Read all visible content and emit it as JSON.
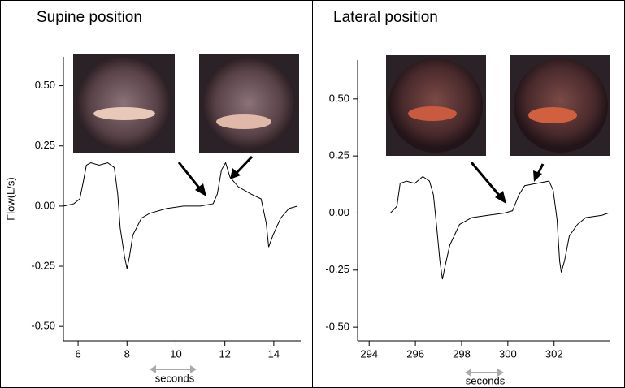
{
  "chart_data": [
    {
      "type": "line",
      "title": "Supine position",
      "ylabel": "Flow(L/s)",
      "xlabel": "seconds",
      "x": [
        5.41,
        5.83,
        6.07,
        6.21,
        6.34,
        6.52,
        6.86,
        7.21,
        7.48,
        7.62,
        7.72,
        7.9,
        8.0,
        8.1,
        8.24,
        8.59,
        8.93,
        9.62,
        10.31,
        11.0,
        11.52,
        11.69,
        11.86,
        12.03,
        12.21,
        12.55,
        13.07,
        13.48,
        13.69,
        13.79,
        13.97,
        14.28,
        14.62,
        14.97
      ],
      "values": [
        0,
        0.01,
        0.03,
        0.1,
        0.17,
        0.18,
        0.17,
        0.18,
        0.16,
        0.05,
        -0.09,
        -0.21,
        -0.26,
        -0.21,
        -0.12,
        -0.05,
        -0.03,
        -0.01,
        0,
        0,
        0.01,
        0.05,
        0.15,
        0.18,
        0.12,
        0.08,
        0.05,
        0.03,
        -0.07,
        -0.17,
        -0.12,
        -0.05,
        -0.01,
        0
      ],
      "color": "#000000",
      "xlim": [
        5.4,
        15.1
      ],
      "xticks": [
        6,
        8,
        10,
        12,
        14
      ],
      "ylim": [
        -0.56,
        0.62
      ],
      "yticks": [
        {
          "value": -0.5,
          "label": "-0.50"
        },
        -0.25,
        {
          "value": 0,
          "label": "0.00"
        },
        0.25,
        {
          "value": 0.5,
          "label": "0.50"
        }
      ]
    },
    {
      "type": "line",
      "title": "Lateral position",
      "xlabel": "seconds",
      "x": [
        293.75,
        294.92,
        295.2,
        295.34,
        295.62,
        295.97,
        296.32,
        296.61,
        296.78,
        296.92,
        297.06,
        297.17,
        297.31,
        297.49,
        297.91,
        298.44,
        299.14,
        299.85,
        300.2,
        300.48,
        300.73,
        301.25,
        301.78,
        301.96,
        302.13,
        302.24,
        302.31,
        302.45,
        302.66,
        303.01,
        303.37,
        304.07,
        304.35
      ],
      "values": [
        0,
        0,
        0.03,
        0.13,
        0.14,
        0.13,
        0.16,
        0.14,
        0.08,
        -0.06,
        -0.21,
        -0.29,
        -0.22,
        -0.14,
        -0.05,
        -0.02,
        -0.01,
        0,
        0.01,
        0.08,
        0.12,
        0.13,
        0.14,
        0.1,
        -0.03,
        -0.21,
        -0.26,
        -0.21,
        -0.1,
        -0.05,
        -0.02,
        -0.01,
        0
      ],
      "color": "#000000",
      "xlim": [
        293.5,
        304.4
      ],
      "xticks": [
        294,
        296,
        298,
        300,
        302
      ],
      "ylim": [
        -0.56,
        0.67
      ],
      "yticks": [
        {
          "value": -0.5,
          "label": "-0.50"
        },
        -0.25,
        {
          "value": 0,
          "label": "0.00"
        },
        0.25,
        {
          "value": 0.5,
          "label": "0.50"
        }
      ]
    }
  ]
}
